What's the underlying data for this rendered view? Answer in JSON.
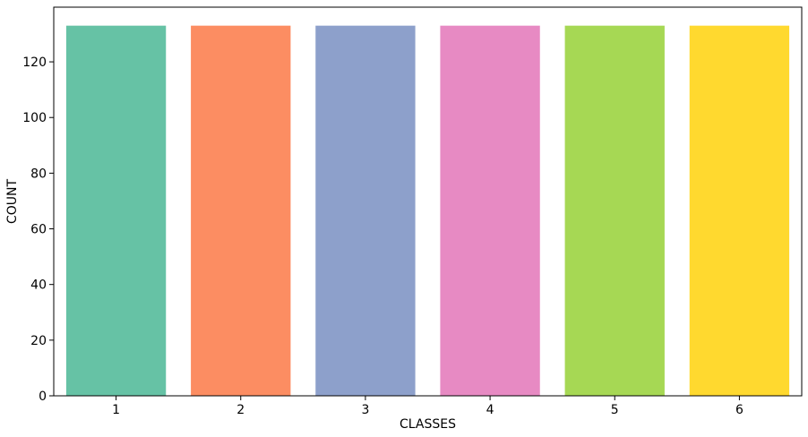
{
  "chart_data": {
    "type": "bar",
    "title": "",
    "xlabel": "CLASSES",
    "ylabel": "COUNT",
    "categories": [
      "1",
      "2",
      "3",
      "4",
      "5",
      "6"
    ],
    "values": [
      133,
      133,
      133,
      133,
      133,
      133
    ],
    "colors": [
      "#66c2a5",
      "#fc8d62",
      "#8da0cb",
      "#e78ac3",
      "#a6d854",
      "#ffd92f"
    ],
    "ylim": [
      0,
      139.65
    ],
    "yticks": [
      0,
      20,
      40,
      60,
      80,
      100,
      120
    ],
    "grid": false,
    "legend": "none"
  }
}
